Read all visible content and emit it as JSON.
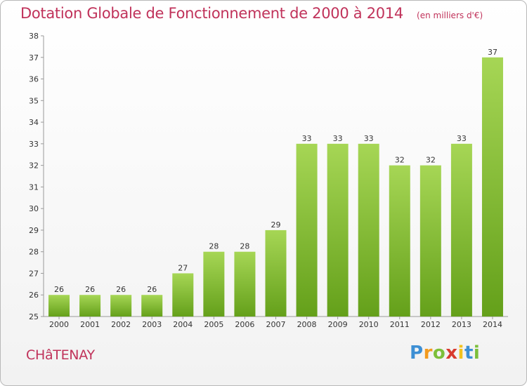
{
  "chart_data": {
    "type": "bar",
    "title": "Dotation Globale de Fonctionnement de 2000 à 2014",
    "unit_label": "(en milliers d'€)",
    "categories": [
      "2000",
      "2001",
      "2002",
      "2003",
      "2004",
      "2005",
      "2006",
      "2007",
      "2008",
      "2009",
      "2010",
      "2011",
      "2012",
      "2013",
      "2014"
    ],
    "values": [
      26,
      26,
      26,
      26,
      27,
      28,
      28,
      29,
      33,
      33,
      33,
      32,
      32,
      33,
      37
    ],
    "ylim": [
      25,
      38
    ],
    "yticks": [
      25,
      26,
      27,
      28,
      29,
      30,
      31,
      32,
      33,
      34,
      35,
      36,
      37,
      38
    ],
    "grid": false,
    "legend": "none",
    "colors": {
      "bar_top": "#a6d655",
      "bar_bottom": "#64a01a",
      "title": "#c0325a",
      "axis": "#9a9a9a",
      "text": "#333333"
    }
  },
  "commune": "CHâTENAY",
  "logo": {
    "letters": [
      {
        "ch": "P",
        "color": "#3d8fd4"
      },
      {
        "ch": "r",
        "color": "#f29a1e"
      },
      {
        "ch": "o",
        "color": "#7cbf3a"
      },
      {
        "ch": "x",
        "color": "#d83a2e"
      },
      {
        "ch": "i",
        "color": "#f2c21e"
      },
      {
        "ch": "t",
        "color": "#3d8fd4"
      },
      {
        "ch": "i",
        "color": "#7cbf3a"
      }
    ]
  }
}
